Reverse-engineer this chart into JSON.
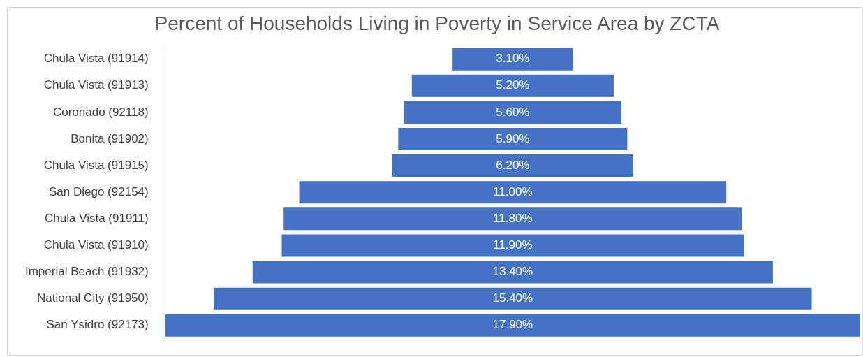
{
  "chart_data": {
    "type": "other",
    "title": "Percent of Households Living in Poverty in Service Area by ZCTA",
    "categories": [
      "Chula Vista (91914)",
      "Chula Vista (91913)",
      "Coronado (92118)",
      "Bonita (91902)",
      "Chula Vista (91915)",
      "San Diego (92154)",
      "Chula Vista (91911)",
      "Chula Vista (91910)",
      "Imperial Beach (91932)",
      "National City (91950)",
      "San Ysidro (92173)"
    ],
    "values": [
      3.1,
      5.2,
      5.6,
      5.9,
      6.2,
      11.0,
      11.8,
      11.9,
      13.4,
      15.4,
      17.9
    ],
    "value_labels": [
      "3.10%",
      "5.20%",
      "5.60%",
      "5.90%",
      "6.20%",
      "11.00%",
      "11.80%",
      "11.90%",
      "13.40%",
      "15.40%",
      "17.90%"
    ],
    "color": "#4472c4"
  }
}
